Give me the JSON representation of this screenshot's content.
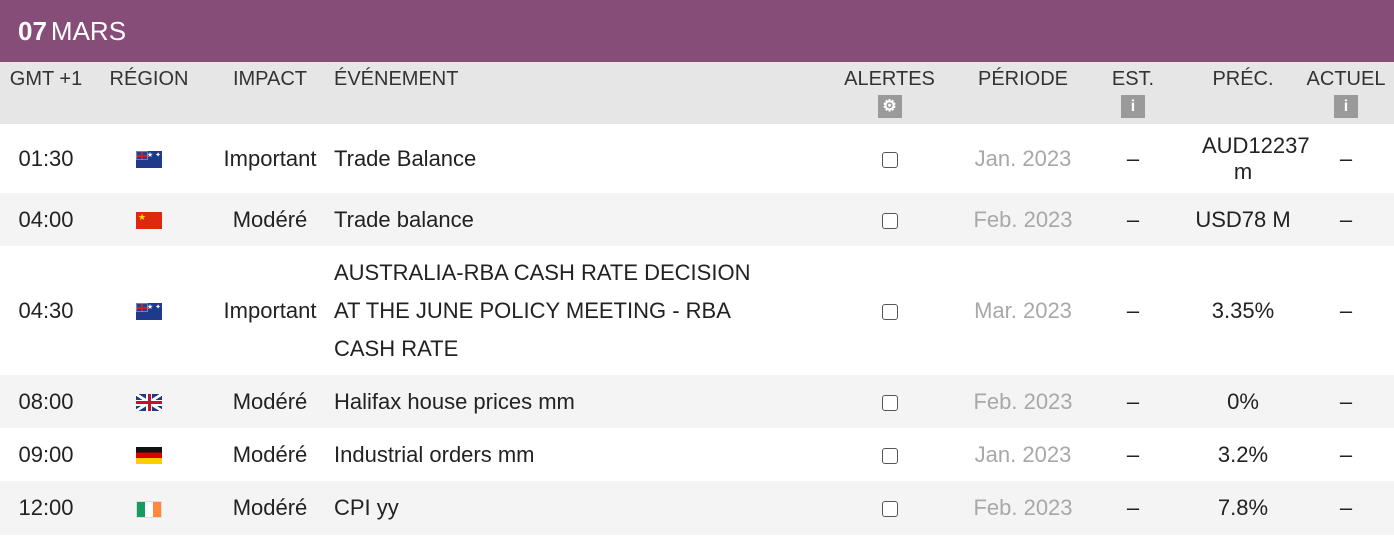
{
  "day": {
    "number": "07",
    "month": "MARS"
  },
  "columns": {
    "time": "GMT +1",
    "region": "RÉGION",
    "impact": "IMPACT",
    "event": "ÉVÉNEMENT",
    "alerts": "ALERTES",
    "period": "PÉRIODE",
    "est": "EST.",
    "prev": "PRÉC.",
    "actual": "ACTUEL"
  },
  "header_icons": {
    "alerts": "gear-icon",
    "est": "info-icon",
    "actual": "info-icon"
  },
  "rows": [
    {
      "time": "01:30",
      "flag": "australia-flag-icon",
      "impact": "Important",
      "event": "Trade Balance",
      "period": "Jan. 2023",
      "est": "–",
      "prev": "AUD12237 m",
      "actual": "–"
    },
    {
      "time": "04:00",
      "flag": "china-flag-icon",
      "impact": "Modéré",
      "event": "Trade balance",
      "period": "Feb. 2023",
      "est": "–",
      "prev": "USD78 M",
      "actual": "–"
    },
    {
      "time": "04:30",
      "flag": "australia-flag-icon",
      "impact": "Important",
      "event": "AUSTRALIA-RBA CASH RATE DECISION AT THE JUNE POLICY MEETING - RBA CASH RATE",
      "period": "Mar. 2023",
      "est": "–",
      "prev": "3.35%",
      "actual": "–"
    },
    {
      "time": "08:00",
      "flag": "uk-flag-icon",
      "impact": "Modéré",
      "event": "Halifax house prices mm",
      "period": "Feb. 2023",
      "est": "–",
      "prev": "0%",
      "actual": "–"
    },
    {
      "time": "09:00",
      "flag": "germany-flag-icon",
      "impact": "Modéré",
      "event": "Industrial orders mm",
      "period": "Jan. 2023",
      "est": "–",
      "prev": "3.2%",
      "actual": "–"
    },
    {
      "time": "12:00",
      "flag": "ireland-flag-icon",
      "impact": "Modéré",
      "event": "CPI yy",
      "period": "Feb. 2023",
      "est": "–",
      "prev": "7.8%",
      "actual": "–"
    }
  ],
  "colors": {
    "day_bar": "#854d77",
    "header_bg": "#e6e6e6",
    "period_text": "#a8a8a8"
  }
}
